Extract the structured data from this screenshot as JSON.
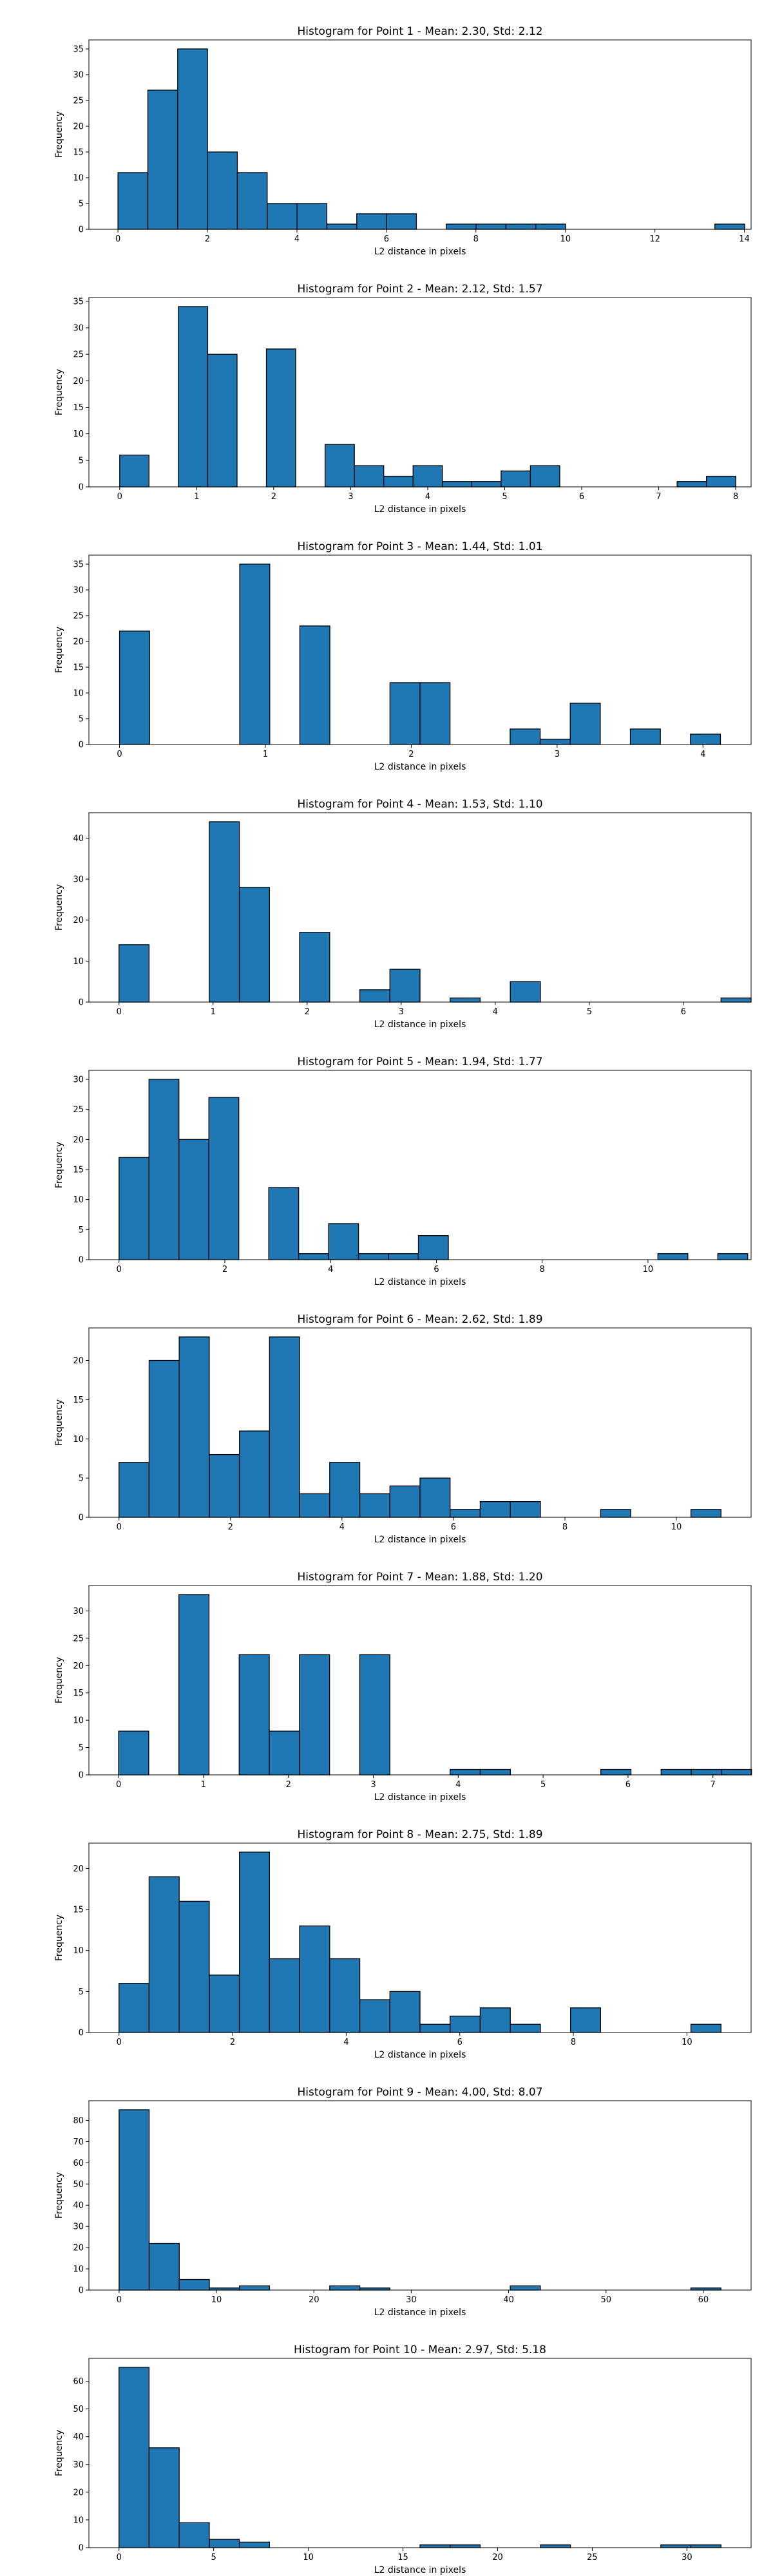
{
  "chart_data": [
    {
      "type": "bar",
      "title": "Histogram for Point 1 - Mean: 2.30, Std: 2.12",
      "xlabel": "L2 distance in pixels",
      "ylabel": "Frequency",
      "xlim": [
        -0.65,
        14.15
      ],
      "ylim": [
        0,
        36.75
      ],
      "xticks": [
        0,
        2,
        4,
        6,
        8,
        10,
        12,
        14
      ],
      "yticks": [
        0,
        5,
        10,
        15,
        20,
        25,
        30,
        35
      ],
      "grid": false,
      "bins": {
        "start": 0,
        "width": 0.667,
        "counts": [
          11,
          27,
          35,
          15,
          11,
          5,
          5,
          1,
          3,
          3,
          0,
          1,
          1,
          1,
          1,
          0,
          0,
          0,
          0,
          0,
          1
        ]
      }
    },
    {
      "type": "bar",
      "title": "Histogram for Point 2 - Mean: 2.12, Std: 1.57",
      "xlabel": "L2 distance in pixels",
      "ylabel": "Frequency",
      "xlim": [
        -0.4,
        8.2
      ],
      "ylim": [
        0,
        35.7
      ],
      "xticks": [
        0,
        1,
        2,
        3,
        4,
        5,
        6,
        7,
        8
      ],
      "yticks": [
        0,
        5,
        10,
        15,
        20,
        25,
        30,
        35
      ],
      "grid": false,
      "bins": {
        "start": 0,
        "width": 0.381,
        "counts": [
          6,
          0,
          34,
          25,
          0,
          26,
          0,
          8,
          4,
          2,
          4,
          1,
          1,
          3,
          4,
          0,
          0,
          0,
          0,
          1,
          2
        ]
      }
    },
    {
      "type": "bar",
      "title": "Histogram for Point 3 - Mean: 1.44, Std: 1.01",
      "xlabel": "L2 distance in pixels",
      "ylabel": "Frequency",
      "xlim": [
        -0.21,
        4.33
      ],
      "ylim": [
        0,
        36.75
      ],
      "xticks": [
        0,
        1,
        2,
        3,
        4
      ],
      "yticks": [
        0,
        5,
        10,
        15,
        20,
        25,
        30,
        35
      ],
      "grid": false,
      "bins": {
        "start": 0,
        "width": 0.206,
        "counts": [
          22,
          0,
          0,
          0,
          35,
          0,
          23,
          0,
          0,
          12,
          12,
          0,
          0,
          3,
          1,
          8,
          0,
          3,
          0,
          2
        ]
      }
    },
    {
      "type": "bar",
      "title": "Histogram for Point 4 - Mean: 1.53, Std: 1.10",
      "xlabel": "L2 distance in pixels",
      "ylabel": "Frequency",
      "xlim": [
        -0.32,
        6.72
      ],
      "ylim": [
        0,
        46.2
      ],
      "xticks": [
        0,
        1,
        2,
        3,
        4,
        5,
        6
      ],
      "yticks": [
        0,
        10,
        20,
        30,
        40
      ],
      "grid": false,
      "bins": {
        "start": 0,
        "width": 0.32,
        "counts": [
          14,
          0,
          0,
          44,
          28,
          0,
          17,
          0,
          3,
          8,
          0,
          1,
          0,
          5,
          0,
          0,
          0,
          0,
          0,
          0,
          1
        ]
      }
    },
    {
      "type": "bar",
      "title": "Histogram for Point 5 - Mean: 1.94, Std: 1.77",
      "xlabel": "L2 distance in pixels",
      "ylabel": "Frequency",
      "xlim": [
        -0.57,
        11.95
      ],
      "ylim": [
        0,
        31.5
      ],
      "xticks": [
        0,
        2,
        4,
        6,
        8,
        10
      ],
      "yticks": [
        0,
        5,
        10,
        15,
        20,
        25,
        30
      ],
      "grid": false,
      "bins": {
        "start": 0,
        "width": 0.566,
        "counts": [
          17,
          30,
          20,
          27,
          0,
          12,
          1,
          6,
          1,
          1,
          4,
          0,
          0,
          0,
          0,
          0,
          0,
          0,
          1,
          0,
          1
        ]
      }
    },
    {
      "type": "bar",
      "title": "Histogram for Point 6 - Mean: 2.62, Std: 1.89",
      "xlabel": "L2 distance in pixels",
      "ylabel": "Frequency",
      "xlim": [
        -0.54,
        11.34
      ],
      "ylim": [
        0,
        24.15
      ],
      "xticks": [
        0,
        2,
        4,
        6,
        8,
        10
      ],
      "yticks": [
        0,
        5,
        10,
        15,
        20
      ],
      "grid": false,
      "bins": {
        "start": 0,
        "width": 0.54,
        "counts": [
          7,
          20,
          23,
          8,
          11,
          23,
          3,
          7,
          3,
          4,
          5,
          1,
          2,
          2,
          0,
          0,
          1,
          0,
          0,
          1
        ]
      }
    },
    {
      "type": "bar",
      "title": "Histogram for Point 7 - Mean: 1.88, Std: 1.20",
      "xlabel": "L2 distance in pixels",
      "ylabel": "Frequency",
      "xlim": [
        -0.35,
        7.45
      ],
      "ylim": [
        0,
        34.65
      ],
      "xticks": [
        0,
        1,
        2,
        3,
        4,
        5,
        6,
        7
      ],
      "yticks": [
        0,
        5,
        10,
        15,
        20,
        25,
        30
      ],
      "grid": false,
      "bins": {
        "start": 0,
        "width": 0.355,
        "counts": [
          8,
          0,
          33,
          0,
          22,
          8,
          22,
          0,
          22,
          0,
          0,
          1,
          1,
          0,
          0,
          0,
          1,
          0,
          1,
          1,
          1
        ]
      }
    },
    {
      "type": "bar",
      "title": "Histogram for Point 8 - Mean: 2.75, Std: 1.89",
      "xlabel": "L2 distance in pixels",
      "ylabel": "Frequency",
      "xlim": [
        -0.53,
        11.13
      ],
      "ylim": [
        0,
        23.1
      ],
      "xticks": [
        0,
        2,
        4,
        6,
        8,
        10
      ],
      "yticks": [
        0,
        5,
        10,
        15,
        20
      ],
      "grid": false,
      "bins": {
        "start": 0,
        "width": 0.53,
        "counts": [
          6,
          19,
          16,
          7,
          22,
          9,
          13,
          9,
          4,
          5,
          1,
          2,
          3,
          1,
          0,
          3,
          0,
          0,
          0,
          1
        ]
      }
    },
    {
      "type": "bar",
      "title": "Histogram for Point 9 - Mean: 4.00, Std: 8.07",
      "xlabel": "L2 distance in pixels",
      "ylabel": "Frequency",
      "xlim": [
        -3.1,
        64.9
      ],
      "ylim": [
        0,
        89.25
      ],
      "xticks": [
        0,
        10,
        20,
        30,
        40,
        50,
        60
      ],
      "yticks": [
        0,
        10,
        20,
        30,
        40,
        50,
        60,
        70,
        80
      ],
      "grid": false,
      "bins": {
        "start": 0,
        "width": 3.09,
        "counts": [
          85,
          22,
          5,
          1,
          2,
          0,
          0,
          2,
          1,
          0,
          0,
          0,
          0,
          2,
          0,
          0,
          0,
          0,
          0,
          1
        ]
      }
    },
    {
      "type": "bar",
      "title": "Histogram for Point 10 - Mean: 2.97, Std: 5.18",
      "xlabel": "L2 distance in pixels",
      "ylabel": "Frequency",
      "xlim": [
        -1.59,
        33.39
      ],
      "ylim": [
        0,
        68.25
      ],
      "xticks": [
        0,
        5,
        10,
        15,
        20,
        25,
        30
      ],
      "yticks": [
        0,
        10,
        20,
        30,
        40,
        50,
        60
      ],
      "grid": false,
      "bins": {
        "start": 0,
        "width": 1.59,
        "counts": [
          65,
          36,
          9,
          3,
          2,
          0,
          0,
          0,
          0,
          0,
          1,
          1,
          0,
          0,
          1,
          0,
          0,
          0,
          1,
          1
        ]
      }
    }
  ]
}
